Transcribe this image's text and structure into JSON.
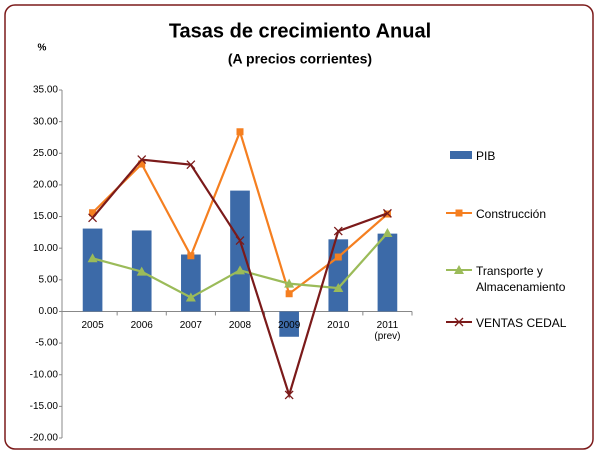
{
  "chart_data": {
    "type": "bar-line",
    "title": "Tasas de crecimiento Anual",
    "subtitle": "(A precios corrientes)",
    "y_label": "%",
    "categories": [
      "2005",
      "2006",
      "2007",
      "2008",
      "2009",
      "2010",
      "2011 (prev)"
    ],
    "series": [
      {
        "name": "PIB",
        "type": "bar",
        "color": "#3c6aa8",
        "values": [
          13.1,
          12.8,
          9.0,
          19.1,
          -4.0,
          11.4,
          12.3
        ]
      },
      {
        "name": "Construcción",
        "type": "line",
        "marker": "square",
        "color": "#f57f20",
        "values": [
          15.6,
          23.3,
          8.8,
          28.4,
          2.8,
          8.6,
          15.4
        ]
      },
      {
        "name": "Transporte y Almacenamiento",
        "type": "line",
        "marker": "triangle",
        "color": "#9bbb59",
        "values": [
          8.4,
          6.3,
          2.2,
          6.5,
          4.4,
          3.7,
          12.4
        ]
      },
      {
        "name": "VENTAS CEDAL",
        "type": "line",
        "marker": "x",
        "color": "#7b1a1a",
        "values": [
          14.8,
          24.0,
          23.2,
          11.2,
          -13.2,
          12.7,
          15.5
        ]
      }
    ],
    "ylim": [
      -20,
      35
    ],
    "yticks": [
      {
        "value": 35,
        "label": "35.00"
      },
      {
        "value": 30,
        "label": "30.00"
      },
      {
        "value": 25,
        "label": "25.00"
      },
      {
        "value": 20,
        "label": "20.00"
      },
      {
        "value": 15,
        "label": "15.00"
      },
      {
        "value": 10,
        "label": "10.00"
      },
      {
        "value": 5,
        "label": "5.00"
      },
      {
        "value": 0,
        "label": "0.00"
      },
      {
        "value": -5,
        "label": "-5.00"
      },
      {
        "value": -10,
        "label": "-10.00"
      },
      {
        "value": -15,
        "label": "-15.00"
      },
      {
        "value": -20,
        "label": "-20.00"
      }
    ],
    "legend": "right",
    "grid": false
  }
}
